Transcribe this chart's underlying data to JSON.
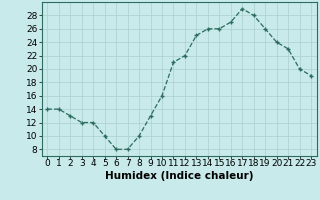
{
  "x": [
    0,
    1,
    2,
    3,
    4,
    5,
    6,
    7,
    8,
    9,
    10,
    11,
    12,
    13,
    14,
    15,
    16,
    17,
    18,
    19,
    20,
    21,
    22,
    23
  ],
  "y": [
    14,
    14,
    13,
    12,
    12,
    10,
    8,
    8,
    10,
    13,
    16,
    21,
    22,
    25,
    26,
    26,
    27,
    29,
    28,
    26,
    24,
    23,
    20,
    19
  ],
  "line_color": "#2d6b5e",
  "marker": "+",
  "bg_color": "#c8eaea",
  "grid_color": "#aacfcf",
  "xlabel": "Humidex (Indice chaleur)",
  "ylabel_ticks": [
    8,
    10,
    12,
    14,
    16,
    18,
    20,
    22,
    24,
    26,
    28
  ],
  "xlim": [
    -0.5,
    23.5
  ],
  "ylim": [
    7,
    30
  ],
  "tick_fontsize": 6.5,
  "label_fontsize": 7.5,
  "marker_size": 3.5,
  "linewidth": 0.9
}
